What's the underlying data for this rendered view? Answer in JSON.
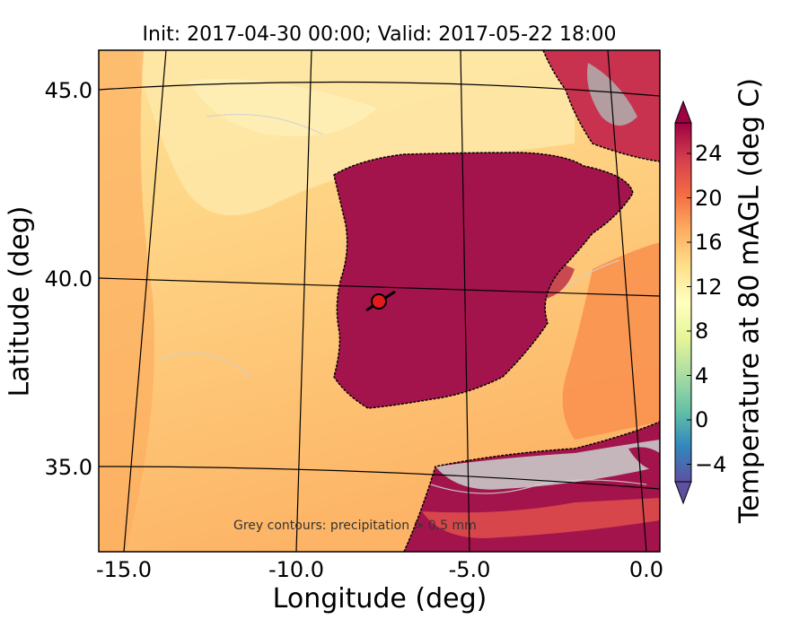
{
  "title": "Init: 2017-04-30 00:00; Valid: 2017-05-22 18:00",
  "note": "Grey contours: precipitation > 0.5 mm",
  "axes": {
    "xlabel": "Longitude (deg)",
    "ylabel": "Latitude (deg)",
    "x_ticks": [
      "-15.0",
      "-10.0",
      "-5.0",
      "0.0"
    ],
    "y_ticks": [
      "45.0",
      "40.0",
      "35.0"
    ]
  },
  "colorbar": {
    "label": "Temperature at 80 mAGL (deg C)",
    "ticks": [
      "24",
      "20",
      "16",
      "12",
      "8",
      "4",
      "0",
      "−4"
    ],
    "colormap": "Spectral_r",
    "range": [
      -6,
      27
    ],
    "colors": [
      "#5e4fa2",
      "#3288bd",
      "#66c2a5",
      "#abdda4",
      "#e6f598",
      "#ffffbf",
      "#fee08b",
      "#fdae61",
      "#f46d43",
      "#d53e4f",
      "#9e0142"
    ]
  },
  "map": {
    "region": "Iberian Peninsula and surrounding Atlantic / Mediterranean",
    "extent_lon": [
      -16,
      0
    ],
    "extent_lat": [
      33,
      46
    ],
    "marker": {
      "lon": -7.6,
      "lat": 39.3,
      "color": "#e31a1c"
    },
    "colors": {
      "ocean_west": "#fdbd6e",
      "ocean_north": "#fedf96",
      "land_hot": "#a3144c",
      "land_warm": "#e2534a",
      "precip_contours": "#c8c8c8"
    }
  }
}
